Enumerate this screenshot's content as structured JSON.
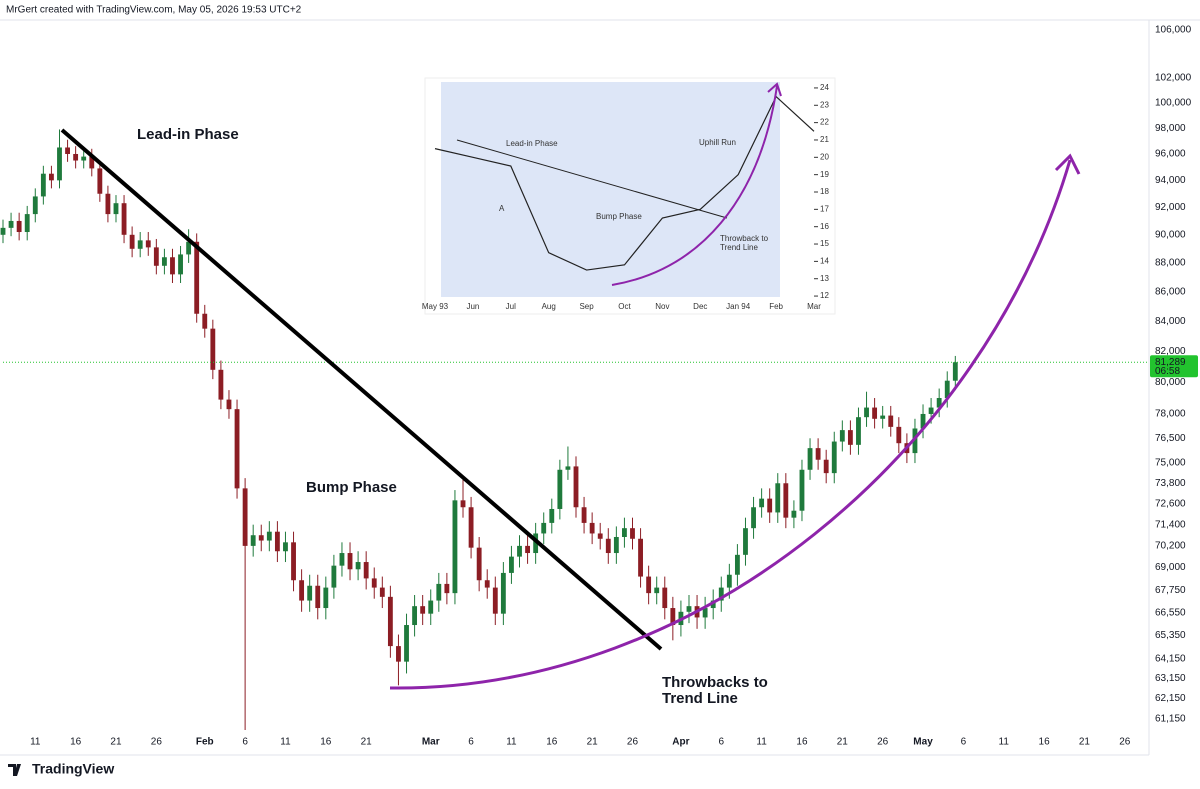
{
  "header": "MrGert created with TradingView.com, May 05, 2026 19:53 UTC+2",
  "footer_logo": "TradingView",
  "chart_data": [
    {
      "type": "candlestick",
      "x": [
        "Jan 7",
        "Jan 8",
        "Jan 9",
        "Jan 10",
        "Jan 11",
        "Jan 12",
        "Jan 13",
        "Jan 14",
        "Jan 15",
        "Jan 16",
        "Jan 17",
        "Jan 18",
        "Jan 19",
        "Jan 20",
        "Jan 21",
        "Jan 22",
        "Jan 23",
        "Jan 24",
        "Jan 25",
        "Jan 26",
        "Jan 27",
        "Jan 28",
        "Jan 29",
        "Jan 30",
        "Jan 31",
        "Feb 1",
        "Feb 2",
        "Feb 3",
        "Feb 4",
        "Feb 5",
        "Feb 6",
        "Feb 7",
        "Feb 8",
        "Feb 9",
        "Feb 10",
        "Feb 11",
        "Feb 12",
        "Feb 13",
        "Feb 14",
        "Feb 15",
        "Feb 16",
        "Feb 17",
        "Feb 18",
        "Feb 19",
        "Feb 20",
        "Feb 21",
        "Feb 22",
        "Feb 23",
        "Feb 24",
        "Feb 25",
        "Feb 26",
        "Feb 27",
        "Feb 28",
        "Mar 1",
        "Mar 2",
        "Mar 3",
        "Mar 4",
        "Mar 5",
        "Mar 6",
        "Mar 7",
        "Mar 8",
        "Mar 9",
        "Mar 10",
        "Mar 11",
        "Mar 12",
        "Mar 13",
        "Mar 14",
        "Mar 15",
        "Mar 16",
        "Mar 17",
        "Mar 18",
        "Mar 19",
        "Mar 20",
        "Mar 21",
        "Mar 22",
        "Mar 23",
        "Mar 24",
        "Mar 25",
        "Mar 26",
        "Mar 27",
        "Mar 28",
        "Mar 29",
        "Mar 30",
        "Mar 31",
        "Apr 1",
        "Apr 2",
        "Apr 3",
        "Apr 4",
        "Apr 5",
        "Apr 6",
        "Apr 7",
        "Apr 8",
        "Apr 9",
        "Apr 10",
        "Apr 11",
        "Apr 12",
        "Apr 13",
        "Apr 14",
        "Apr 15",
        "Apr 16",
        "Apr 17",
        "Apr 18",
        "Apr 19",
        "Apr 20",
        "Apr 21",
        "Apr 22",
        "Apr 23",
        "Apr 24",
        "Apr 25",
        "Apr 26",
        "Apr 27",
        "Apr 28",
        "Apr 29",
        "Apr 30",
        "May 1",
        "May 2",
        "May 3",
        "May 4",
        "May 5"
      ],
      "open": [
        90000,
        90500,
        91000,
        90200,
        91500,
        92800,
        94500,
        94000,
        96500,
        96000,
        95500,
        95800,
        94900,
        93000,
        91500,
        92300,
        90000,
        89000,
        89600,
        89100,
        87800,
        88400,
        87200,
        88600,
        89500,
        84500,
        83500,
        80800,
        78900,
        78300,
        73500,
        70200,
        70800,
        70500,
        71000,
        69900,
        70400,
        68300,
        67200,
        68000,
        66800,
        67900,
        69100,
        69800,
        68900,
        69300,
        68400,
        67900,
        67400,
        64800,
        64000,
        65900,
        66900,
        66500,
        67200,
        68100,
        67600,
        72800,
        72400,
        70100,
        68300,
        67900,
        66500,
        68700,
        69600,
        70200,
        69800,
        70900,
        71500,
        72300,
        74600,
        74800,
        72400,
        71500,
        70900,
        70600,
        69800,
        70700,
        71200,
        70600,
        68500,
        67600,
        67900,
        66800,
        65900,
        66600,
        66900,
        66300,
        66800,
        67200,
        67900,
        68600,
        69700,
        71200,
        72400,
        72900,
        72100,
        73800,
        71800,
        72200,
        74600,
        75900,
        75200,
        74400,
        76300,
        77000,
        76100,
        77800,
        78400,
        77700,
        77900,
        77200,
        76200,
        75600,
        77100,
        78000,
        78400,
        79000,
        80100
      ],
      "high": [
        91100,
        91600,
        91600,
        92100,
        93400,
        95100,
        95100,
        97900,
        97100,
        96600,
        96400,
        96400,
        95500,
        93600,
        92900,
        92900,
        90600,
        90200,
        90200,
        89700,
        89000,
        89000,
        89200,
        90400,
        90100,
        85100,
        84100,
        81400,
        79500,
        78900,
        74100,
        71400,
        71400,
        71600,
        71600,
        71000,
        71000,
        68900,
        68600,
        68600,
        68500,
        69700,
        70400,
        70400,
        69900,
        69900,
        69000,
        68500,
        68000,
        65400,
        66500,
        67500,
        67500,
        67800,
        68700,
        68700,
        73400,
        74000,
        73000,
        70700,
        68900,
        68500,
        69300,
        70200,
        70800,
        70800,
        71500,
        72100,
        72900,
        75200,
        76000,
        75400,
        73000,
        72100,
        71500,
        71200,
        71300,
        71800,
        71800,
        71200,
        69100,
        68500,
        68500,
        67400,
        67200,
        67500,
        67500,
        67400,
        67800,
        68500,
        69200,
        70300,
        71800,
        73000,
        73500,
        73500,
        74400,
        74400,
        72800,
        75200,
        76500,
        76500,
        75800,
        76900,
        77600,
        77600,
        78400,
        79400,
        79000,
        78500,
        78500,
        77800,
        76800,
        77700,
        78600,
        79000,
        79600,
        80700,
        81700
      ],
      "low": [
        89400,
        89900,
        89600,
        89600,
        90900,
        92200,
        93400,
        93400,
        95400,
        94900,
        94900,
        94300,
        92400,
        90900,
        90900,
        89400,
        88400,
        88400,
        88500,
        87200,
        87200,
        86600,
        86600,
        88000,
        83900,
        82900,
        80200,
        78300,
        77700,
        72900,
        60600,
        69600,
        69900,
        69900,
        69300,
        69300,
        67700,
        66600,
        66600,
        66200,
        66200,
        67300,
        68500,
        68300,
        68300,
        67800,
        67300,
        66800,
        64200,
        62800,
        63400,
        65300,
        65900,
        65900,
        66600,
        67000,
        67000,
        71800,
        69500,
        67700,
        67300,
        65900,
        65900,
        68100,
        69000,
        69200,
        69200,
        70300,
        70900,
        71700,
        74000,
        71800,
        70900,
        70300,
        70000,
        69200,
        69200,
        70100,
        70000,
        67900,
        67000,
        67000,
        66200,
        65100,
        65300,
        66000,
        65700,
        65700,
        66200,
        66600,
        67300,
        68000,
        69100,
        70600,
        71800,
        71500,
        71500,
        71200,
        71200,
        71600,
        74000,
        74600,
        73800,
        73800,
        75700,
        75500,
        75500,
        77200,
        77100,
        77100,
        76600,
        75600,
        75000,
        75000,
        76500,
        77400,
        77800,
        78400,
        79500
      ],
      "close": [
        90500,
        91000,
        90200,
        91500,
        92800,
        94500,
        94000,
        96500,
        96000,
        95500,
        95800,
        94900,
        93000,
        91500,
        92300,
        90000,
        89000,
        89600,
        89100,
        87800,
        88400,
        87200,
        88600,
        89500,
        84500,
        83500,
        80800,
        78900,
        78300,
        73500,
        70200,
        70800,
        70500,
        71000,
        69900,
        70400,
        68300,
        67200,
        68000,
        66800,
        67900,
        69100,
        69800,
        68900,
        69300,
        68400,
        67900,
        67400,
        64800,
        64000,
        65900,
        66900,
        66500,
        67200,
        68100,
        67600,
        72800,
        72400,
        70100,
        68300,
        67900,
        66500,
        68700,
        69600,
        70200,
        69800,
        70900,
        71500,
        72300,
        74600,
        74800,
        72400,
        71500,
        70900,
        70600,
        69800,
        70700,
        71200,
        70600,
        68500,
        67600,
        67900,
        66800,
        65900,
        66600,
        66900,
        66300,
        66800,
        67200,
        67900,
        68600,
        69700,
        71200,
        72400,
        72900,
        72100,
        73800,
        71800,
        72200,
        74600,
        75900,
        75200,
        74400,
        76300,
        77000,
        76100,
        77800,
        78400,
        77700,
        77900,
        77200,
        76200,
        75600,
        77100,
        78000,
        78400,
        79000,
        80100,
        81289
      ],
      "up_color": "#1f7a3c",
      "down_color": "#8c1d24",
      "xlim": [
        "Jan 7",
        "May 29"
      ],
      "xticks": [
        {
          "value": "Jan 11",
          "label": "11"
        },
        {
          "value": "Jan 16",
          "label": "16"
        },
        {
          "value": "Jan 21",
          "label": "21"
        },
        {
          "value": "Jan 26",
          "label": "26"
        },
        {
          "value": "Feb 1",
          "label": "Feb"
        },
        {
          "value": "Feb 6",
          "label": "6"
        },
        {
          "value": "Feb 11",
          "label": "11"
        },
        {
          "value": "Feb 16",
          "label": "16"
        },
        {
          "value": "Feb 21",
          "label": "21"
        },
        {
          "value": "Mar 1",
          "label": "Mar"
        },
        {
          "value": "Mar 6",
          "label": "6"
        },
        {
          "value": "Mar 11",
          "label": "11"
        },
        {
          "value": "Mar 16",
          "label": "16"
        },
        {
          "value": "Mar 21",
          "label": "21"
        },
        {
          "value": "Mar 26",
          "label": "26"
        },
        {
          "value": "Apr 1",
          "label": "Apr"
        },
        {
          "value": "Apr 6",
          "label": "6"
        },
        {
          "value": "Apr 11",
          "label": "11"
        },
        {
          "value": "Apr 16",
          "label": "16"
        },
        {
          "value": "Apr 21",
          "label": "21"
        },
        {
          "value": "Apr 26",
          "label": "26"
        },
        {
          "value": "May 1",
          "label": "May"
        },
        {
          "value": "May 6",
          "label": "6"
        },
        {
          "value": "May 11",
          "label": "11"
        },
        {
          "value": "May 16",
          "label": "16"
        },
        {
          "value": "May 21",
          "label": "21"
        },
        {
          "value": "May 26",
          "label": "26"
        }
      ],
      "ylim": [
        60600,
        107700
      ],
      "log_scale": true,
      "grid": false,
      "yticks": [
        {
          "value": 106000,
          "label": "106,000"
        },
        {
          "value": 102000,
          "label": "102,000"
        },
        {
          "value": 100000,
          "label": "100,000"
        },
        {
          "value": 98000,
          "label": "98,000"
        },
        {
          "value": 96000,
          "label": "96,000"
        },
        {
          "value": 94000,
          "label": "94,000"
        },
        {
          "value": 92000,
          "label": "92,000"
        },
        {
          "value": 90000,
          "label": "90,000"
        },
        {
          "value": 88000,
          "label": "88,000"
        },
        {
          "value": 86000,
          "label": "86,000"
        },
        {
          "value": 84000,
          "label": "84,000"
        },
        {
          "value": 82000,
          "label": "82,000"
        },
        {
          "value": 80000,
          "label": "80,000"
        },
        {
          "value": 78000,
          "label": "78,000"
        },
        {
          "value": 76500,
          "label": "76,500"
        },
        {
          "value": 75000,
          "label": "75,000"
        },
        {
          "value": 73800,
          "label": "73,800"
        },
        {
          "value": 72600,
          "label": "72,600"
        },
        {
          "value": 71400,
          "label": "71,400"
        },
        {
          "value": 70200,
          "label": "70,200"
        },
        {
          "value": 69000,
          "label": "69,000"
        },
        {
          "value": 67750,
          "label": "67,750"
        },
        {
          "value": 66550,
          "label": "66,550"
        },
        {
          "value": 65350,
          "label": "65,350"
        },
        {
          "value": 64150,
          "label": "64,150"
        },
        {
          "value": 63150,
          "label": "63,150"
        },
        {
          "value": 62150,
          "label": "62,150"
        },
        {
          "value": 61150,
          "label": "61,150"
        }
      ],
      "price_label": {
        "value": 81289,
        "label": "81,289"
      },
      "countdown": "06:58",
      "price_color": "#22c32e",
      "annotations": [
        "Lead-in Phase",
        "Bump Phase",
        "Throwbacks to",
        "Trend Line"
      ]
    },
    {
      "type": "line",
      "categories": [
        "May 93",
        "Jun",
        "Jul",
        "Aug",
        "Sep",
        "Oct",
        "Nov",
        "Dec",
        "Jan 94",
        "Feb",
        "Mar"
      ],
      "values": [
        20.5,
        20.0,
        19.5,
        14.5,
        13.5,
        13.8,
        16.5,
        17.0,
        19.0,
        23.5,
        21.5
      ],
      "color": "#222222",
      "background": "#dde6f7",
      "ylim": [
        11.6,
        24.4
      ],
      "yticks": [
        12,
        13,
        14,
        15,
        16,
        17,
        18,
        19,
        20,
        21,
        22,
        23,
        24
      ],
      "annotations": [
        "Lead-in Phase",
        "A",
        "Bump Phase",
        "Uphill Run",
        "Throwback to",
        "Trend Line"
      ]
    }
  ]
}
